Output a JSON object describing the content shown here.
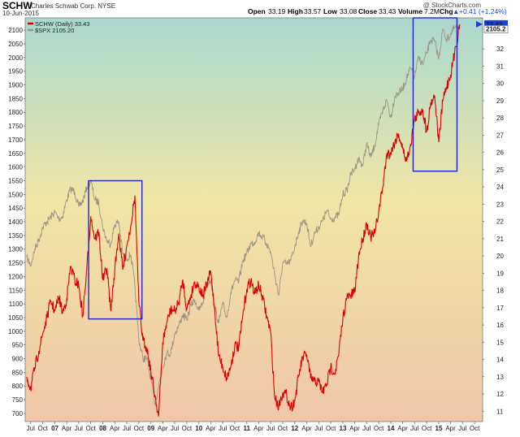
{
  "header": {
    "symbol": "SCHW",
    "company": "Charles Schwab Corp.  NYSE",
    "date": "10-Jun-2015",
    "open_label": "Open",
    "open_value": "33.19",
    "high_label": "High",
    "high_value": "33.57",
    "low_label": "Low",
    "low_value": "33.08",
    "close_label": "Close",
    "close_value": "33.43",
    "volume_label": "Volume",
    "volume_value": "7.2M",
    "chg_label": "Chg",
    "chg_value": "+0.41 (+1.24%)",
    "arrow": "▲"
  },
  "watermark": "@ StockCharts.com",
  "colors": {
    "schw": "#dd0000",
    "spx": "#9a9585",
    "box": "#2222cc",
    "bg_top": "#a9d8cf",
    "bg_mid": "#f0e6a6",
    "bg_bottom": "#f0c6a8",
    "last_value_bg": "#1d3fd6"
  },
  "chart_data": {
    "type": "line",
    "x_tick_labels": [
      "Jul",
      "Oct",
      "07",
      "Apr",
      "Jul",
      "Oct",
      "08",
      "Apr",
      "Jul",
      "Oct",
      "09",
      "Apr",
      "Jul",
      "Oct",
      "10",
      "Apr",
      "Jul",
      "Oct",
      "11",
      "Apr",
      "Jul",
      "Oct",
      "12",
      "Apr",
      "Jul",
      "Oct",
      "13",
      "Apr",
      "Jul",
      "Oct",
      "14",
      "Apr",
      "Jul",
      "Oct",
      "15",
      "Apr",
      "Jul",
      "Oct"
    ],
    "left_axis": {
      "ticks": [
        700,
        750,
        800,
        850,
        900,
        950,
        1000,
        1050,
        1100,
        1150,
        1200,
        1250,
        1300,
        1350,
        1400,
        1450,
        1500,
        1550,
        1600,
        1650,
        1700,
        1750,
        1800,
        1850,
        1900,
        1950,
        2000,
        2050,
        2100
      ],
      "range": [
        670,
        2145
      ]
    },
    "right_axis": {
      "ticks": [
        11,
        12,
        13,
        14,
        15,
        16,
        17,
        18,
        19,
        20,
        21,
        22,
        23,
        24,
        25,
        26,
        27,
        28,
        29,
        30,
        31,
        32
      ],
      "range": [
        10.4,
        33.8
      ]
    },
    "series": [
      {
        "name": "SCHW (Daily) 33.43",
        "axis": "right",
        "points": [
          [
            "2006-06-01",
            13.0
          ],
          [
            "2006-07-01",
            12.3
          ],
          [
            "2006-08-01",
            13.5
          ],
          [
            "2006-09-01",
            14.5
          ],
          [
            "2006-10-01",
            15.5
          ],
          [
            "2006-11-01",
            16.4
          ],
          [
            "2006-12-01",
            17.4
          ],
          [
            "2007-01-01",
            16.8
          ],
          [
            "2007-02-01",
            17.6
          ],
          [
            "2007-03-01",
            16.7
          ],
          [
            "2007-04-01",
            17.5
          ],
          [
            "2007-05-01",
            19.4
          ],
          [
            "2007-06-01",
            18.6
          ],
          [
            "2007-07-01",
            18.3
          ],
          [
            "2007-08-01",
            16.5
          ],
          [
            "2007-09-01",
            19.2
          ],
          [
            "2007-10-01",
            22.3
          ],
          [
            "2007-11-01",
            21.0
          ],
          [
            "2007-12-01",
            21.4
          ],
          [
            "2008-01-01",
            18.6
          ],
          [
            "2008-02-01",
            19.3
          ],
          [
            "2008-03-01",
            16.8
          ],
          [
            "2008-04-01",
            19.2
          ],
          [
            "2008-05-01",
            21.3
          ],
          [
            "2008-06-01",
            19.2
          ],
          [
            "2008-07-01",
            20.6
          ],
          [
            "2008-08-01",
            21.8
          ],
          [
            "2008-09-01",
            23.5
          ],
          [
            "2008-10-01",
            17.3
          ],
          [
            "2008-11-01",
            15.1
          ],
          [
            "2008-12-01",
            14.7
          ],
          [
            "2009-01-01",
            13.3
          ],
          [
            "2009-02-01",
            11.9
          ],
          [
            "2009-03-01",
            10.7
          ],
          [
            "2009-04-01",
            15.0
          ],
          [
            "2009-05-01",
            16.1
          ],
          [
            "2009-06-01",
            16.9
          ],
          [
            "2009-07-01",
            16.8
          ],
          [
            "2009-08-01",
            17.3
          ],
          [
            "2009-09-01",
            18.6
          ],
          [
            "2009-10-01",
            16.9
          ],
          [
            "2009-11-01",
            17.7
          ],
          [
            "2009-12-01",
            18.5
          ],
          [
            "2010-01-01",
            18.2
          ],
          [
            "2010-02-01",
            17.7
          ],
          [
            "2010-03-01",
            18.3
          ],
          [
            "2010-04-01",
            19.1
          ],
          [
            "2010-05-01",
            16.9
          ],
          [
            "2010-06-01",
            14.2
          ],
          [
            "2010-07-01",
            13.6
          ],
          [
            "2010-08-01",
            12.9
          ],
          [
            "2010-09-01",
            13.6
          ],
          [
            "2010-10-01",
            14.8
          ],
          [
            "2010-11-01",
            14.7
          ],
          [
            "2010-12-01",
            16.5
          ],
          [
            "2011-01-01",
            18.1
          ],
          [
            "2011-02-01",
            18.6
          ],
          [
            "2011-03-01",
            17.8
          ],
          [
            "2011-04-01",
            18.3
          ],
          [
            "2011-05-01",
            17.6
          ],
          [
            "2011-06-01",
            16.5
          ],
          [
            "2011-07-01",
            15.6
          ],
          [
            "2011-08-01",
            11.8
          ],
          [
            "2011-09-01",
            11.3
          ],
          [
            "2011-10-01",
            12.1
          ],
          [
            "2011-11-01",
            11.9
          ],
          [
            "2011-12-01",
            11.2
          ],
          [
            "2012-01-01",
            11.6
          ],
          [
            "2012-02-01",
            13.1
          ],
          [
            "2012-03-01",
            14.1
          ],
          [
            "2012-04-01",
            14.3
          ],
          [
            "2012-05-01",
            12.9
          ],
          [
            "2012-06-01",
            12.7
          ],
          [
            "2012-07-01",
            12.7
          ],
          [
            "2012-08-01",
            12.1
          ],
          [
            "2012-09-01",
            12.6
          ],
          [
            "2012-10-01",
            13.6
          ],
          [
            "2012-11-01",
            13.2
          ],
          [
            "2012-12-01",
            14.3
          ],
          [
            "2013-01-01",
            16.4
          ],
          [
            "2013-02-01",
            17.6
          ],
          [
            "2013-03-01",
            17.7
          ],
          [
            "2013-04-01",
            17.9
          ],
          [
            "2013-05-01",
            20.0
          ],
          [
            "2013-06-01",
            21.0
          ],
          [
            "2013-07-01",
            21.9
          ],
          [
            "2013-08-01",
            21.1
          ],
          [
            "2013-09-01",
            21.3
          ],
          [
            "2013-10-01",
            22.6
          ],
          [
            "2013-11-01",
            24.0
          ],
          [
            "2013-12-01",
            25.9
          ],
          [
            "2014-01-01",
            26.0
          ],
          [
            "2014-02-01",
            26.6
          ],
          [
            "2014-03-01",
            27.1
          ],
          [
            "2014-04-01",
            26.2
          ],
          [
            "2014-05-01",
            25.5
          ],
          [
            "2014-06-01",
            26.5
          ],
          [
            "2014-07-01",
            27.9
          ],
          [
            "2014-08-01",
            28.3
          ],
          [
            "2014-09-01",
            28.5
          ],
          [
            "2014-10-01",
            27.2
          ],
          [
            "2014-11-01",
            28.9
          ],
          [
            "2014-12-01",
            29.3
          ],
          [
            "2015-01-01",
            26.6
          ],
          [
            "2015-02-01",
            29.0
          ],
          [
            "2015-03-01",
            29.8
          ],
          [
            "2015-04-01",
            30.5
          ],
          [
            "2015-05-01",
            31.7
          ],
          [
            "2015-06-10",
            33.43
          ]
        ]
      },
      {
        "name": "$SPX 2105.20",
        "axis": "left",
        "points": [
          [
            "2006-06-01",
            1270
          ],
          [
            "2006-07-01",
            1240
          ],
          [
            "2006-08-01",
            1300
          ],
          [
            "2006-09-01",
            1335
          ],
          [
            "2006-10-01",
            1380
          ],
          [
            "2006-11-01",
            1400
          ],
          [
            "2006-12-01",
            1418
          ],
          [
            "2007-01-01",
            1435
          ],
          [
            "2007-02-01",
            1410
          ],
          [
            "2007-03-01",
            1420
          ],
          [
            "2007-04-01",
            1480
          ],
          [
            "2007-05-01",
            1520
          ],
          [
            "2007-06-01",
            1510
          ],
          [
            "2007-07-01",
            1455
          ],
          [
            "2007-08-01",
            1475
          ],
          [
            "2007-09-01",
            1525
          ],
          [
            "2007-10-01",
            1550
          ],
          [
            "2007-11-01",
            1480
          ],
          [
            "2007-12-01",
            1470
          ],
          [
            "2008-01-01",
            1380
          ],
          [
            "2008-02-01",
            1330
          ],
          [
            "2008-03-01",
            1320
          ],
          [
            "2008-04-01",
            1390
          ],
          [
            "2008-05-01",
            1400
          ],
          [
            "2008-06-01",
            1280
          ],
          [
            "2008-07-01",
            1265
          ],
          [
            "2008-08-01",
            1280
          ],
          [
            "2008-09-01",
            1165
          ],
          [
            "2008-10-01",
            970
          ],
          [
            "2008-11-01",
            900
          ],
          [
            "2008-12-01",
            900
          ],
          [
            "2009-01-01",
            825
          ],
          [
            "2009-02-01",
            735
          ],
          [
            "2009-03-01",
            800
          ],
          [
            "2009-04-01",
            870
          ],
          [
            "2009-05-01",
            920
          ],
          [
            "2009-06-01",
            920
          ],
          [
            "2009-07-01",
            990
          ],
          [
            "2009-08-01",
            1020
          ],
          [
            "2009-09-01",
            1060
          ],
          [
            "2009-10-01",
            1040
          ],
          [
            "2009-11-01",
            1095
          ],
          [
            "2009-12-01",
            1115
          ],
          [
            "2010-01-01",
            1075
          ],
          [
            "2010-02-01",
            1105
          ],
          [
            "2010-03-01",
            1170
          ],
          [
            "2010-04-01",
            1190
          ],
          [
            "2010-05-01",
            1090
          ],
          [
            "2010-06-01",
            1030
          ],
          [
            "2010-07-01",
            1100
          ],
          [
            "2010-08-01",
            1050
          ],
          [
            "2010-09-01",
            1140
          ],
          [
            "2010-10-01",
            1185
          ],
          [
            "2010-11-01",
            1180
          ],
          [
            "2010-12-01",
            1257
          ],
          [
            "2011-01-01",
            1285
          ],
          [
            "2011-02-01",
            1320
          ],
          [
            "2011-03-01",
            1325
          ],
          [
            "2011-04-01",
            1360
          ],
          [
            "2011-05-01",
            1345
          ],
          [
            "2011-06-01",
            1320
          ],
          [
            "2011-07-01",
            1290
          ],
          [
            "2011-08-01",
            1210
          ],
          [
            "2011-09-01",
            1130
          ],
          [
            "2011-10-01",
            1250
          ],
          [
            "2011-11-01",
            1245
          ],
          [
            "2011-12-01",
            1257
          ],
          [
            "2012-01-01",
            1310
          ],
          [
            "2012-02-01",
            1365
          ],
          [
            "2012-03-01",
            1405
          ],
          [
            "2012-04-01",
            1395
          ],
          [
            "2012-05-01",
            1310
          ],
          [
            "2012-06-01",
            1360
          ],
          [
            "2012-07-01",
            1380
          ],
          [
            "2012-08-01",
            1405
          ],
          [
            "2012-09-01",
            1440
          ],
          [
            "2012-10-01",
            1410
          ],
          [
            "2012-11-01",
            1415
          ],
          [
            "2012-12-01",
            1425
          ],
          [
            "2013-01-01",
            1500
          ],
          [
            "2013-02-01",
            1515
          ],
          [
            "2013-03-01",
            1570
          ],
          [
            "2013-04-01",
            1595
          ],
          [
            "2013-05-01",
            1630
          ],
          [
            "2013-06-01",
            1605
          ],
          [
            "2013-07-01",
            1685
          ],
          [
            "2013-08-01",
            1635
          ],
          [
            "2013-09-01",
            1680
          ],
          [
            "2013-10-01",
            1755
          ],
          [
            "2013-11-01",
            1805
          ],
          [
            "2013-12-01",
            1845
          ],
          [
            "2014-01-01",
            1780
          ],
          [
            "2014-02-01",
            1860
          ],
          [
            "2014-03-01",
            1870
          ],
          [
            "2014-04-01",
            1885
          ],
          [
            "2014-05-01",
            1925
          ],
          [
            "2014-06-01",
            1960
          ],
          [
            "2014-07-01",
            1930
          ],
          [
            "2014-08-01",
            2000
          ],
          [
            "2014-09-01",
            1975
          ],
          [
            "2014-10-01",
            2015
          ],
          [
            "2014-11-01",
            2065
          ],
          [
            "2014-12-01",
            2060
          ],
          [
            "2015-01-01",
            1995
          ],
          [
            "2015-02-01",
            2105
          ],
          [
            "2015-03-01",
            2065
          ],
          [
            "2015-04-01",
            2085
          ],
          [
            "2015-05-01",
            2110
          ],
          [
            "2015-06-10",
            2105.2
          ]
        ]
      }
    ],
    "highlight_boxes": [
      {
        "x_range": [
          "2007-09-15",
          "2008-10-25"
        ],
        "y_range_left": [
          1045,
          1550
        ]
      },
      {
        "x_range": [
          "2014-06-20",
          "2015-05-20"
        ],
        "y_range_left": [
          1585,
          2145
        ]
      }
    ],
    "last_values": {
      "schw": "33.43",
      "spx": "2105.2"
    },
    "grid": false
  }
}
